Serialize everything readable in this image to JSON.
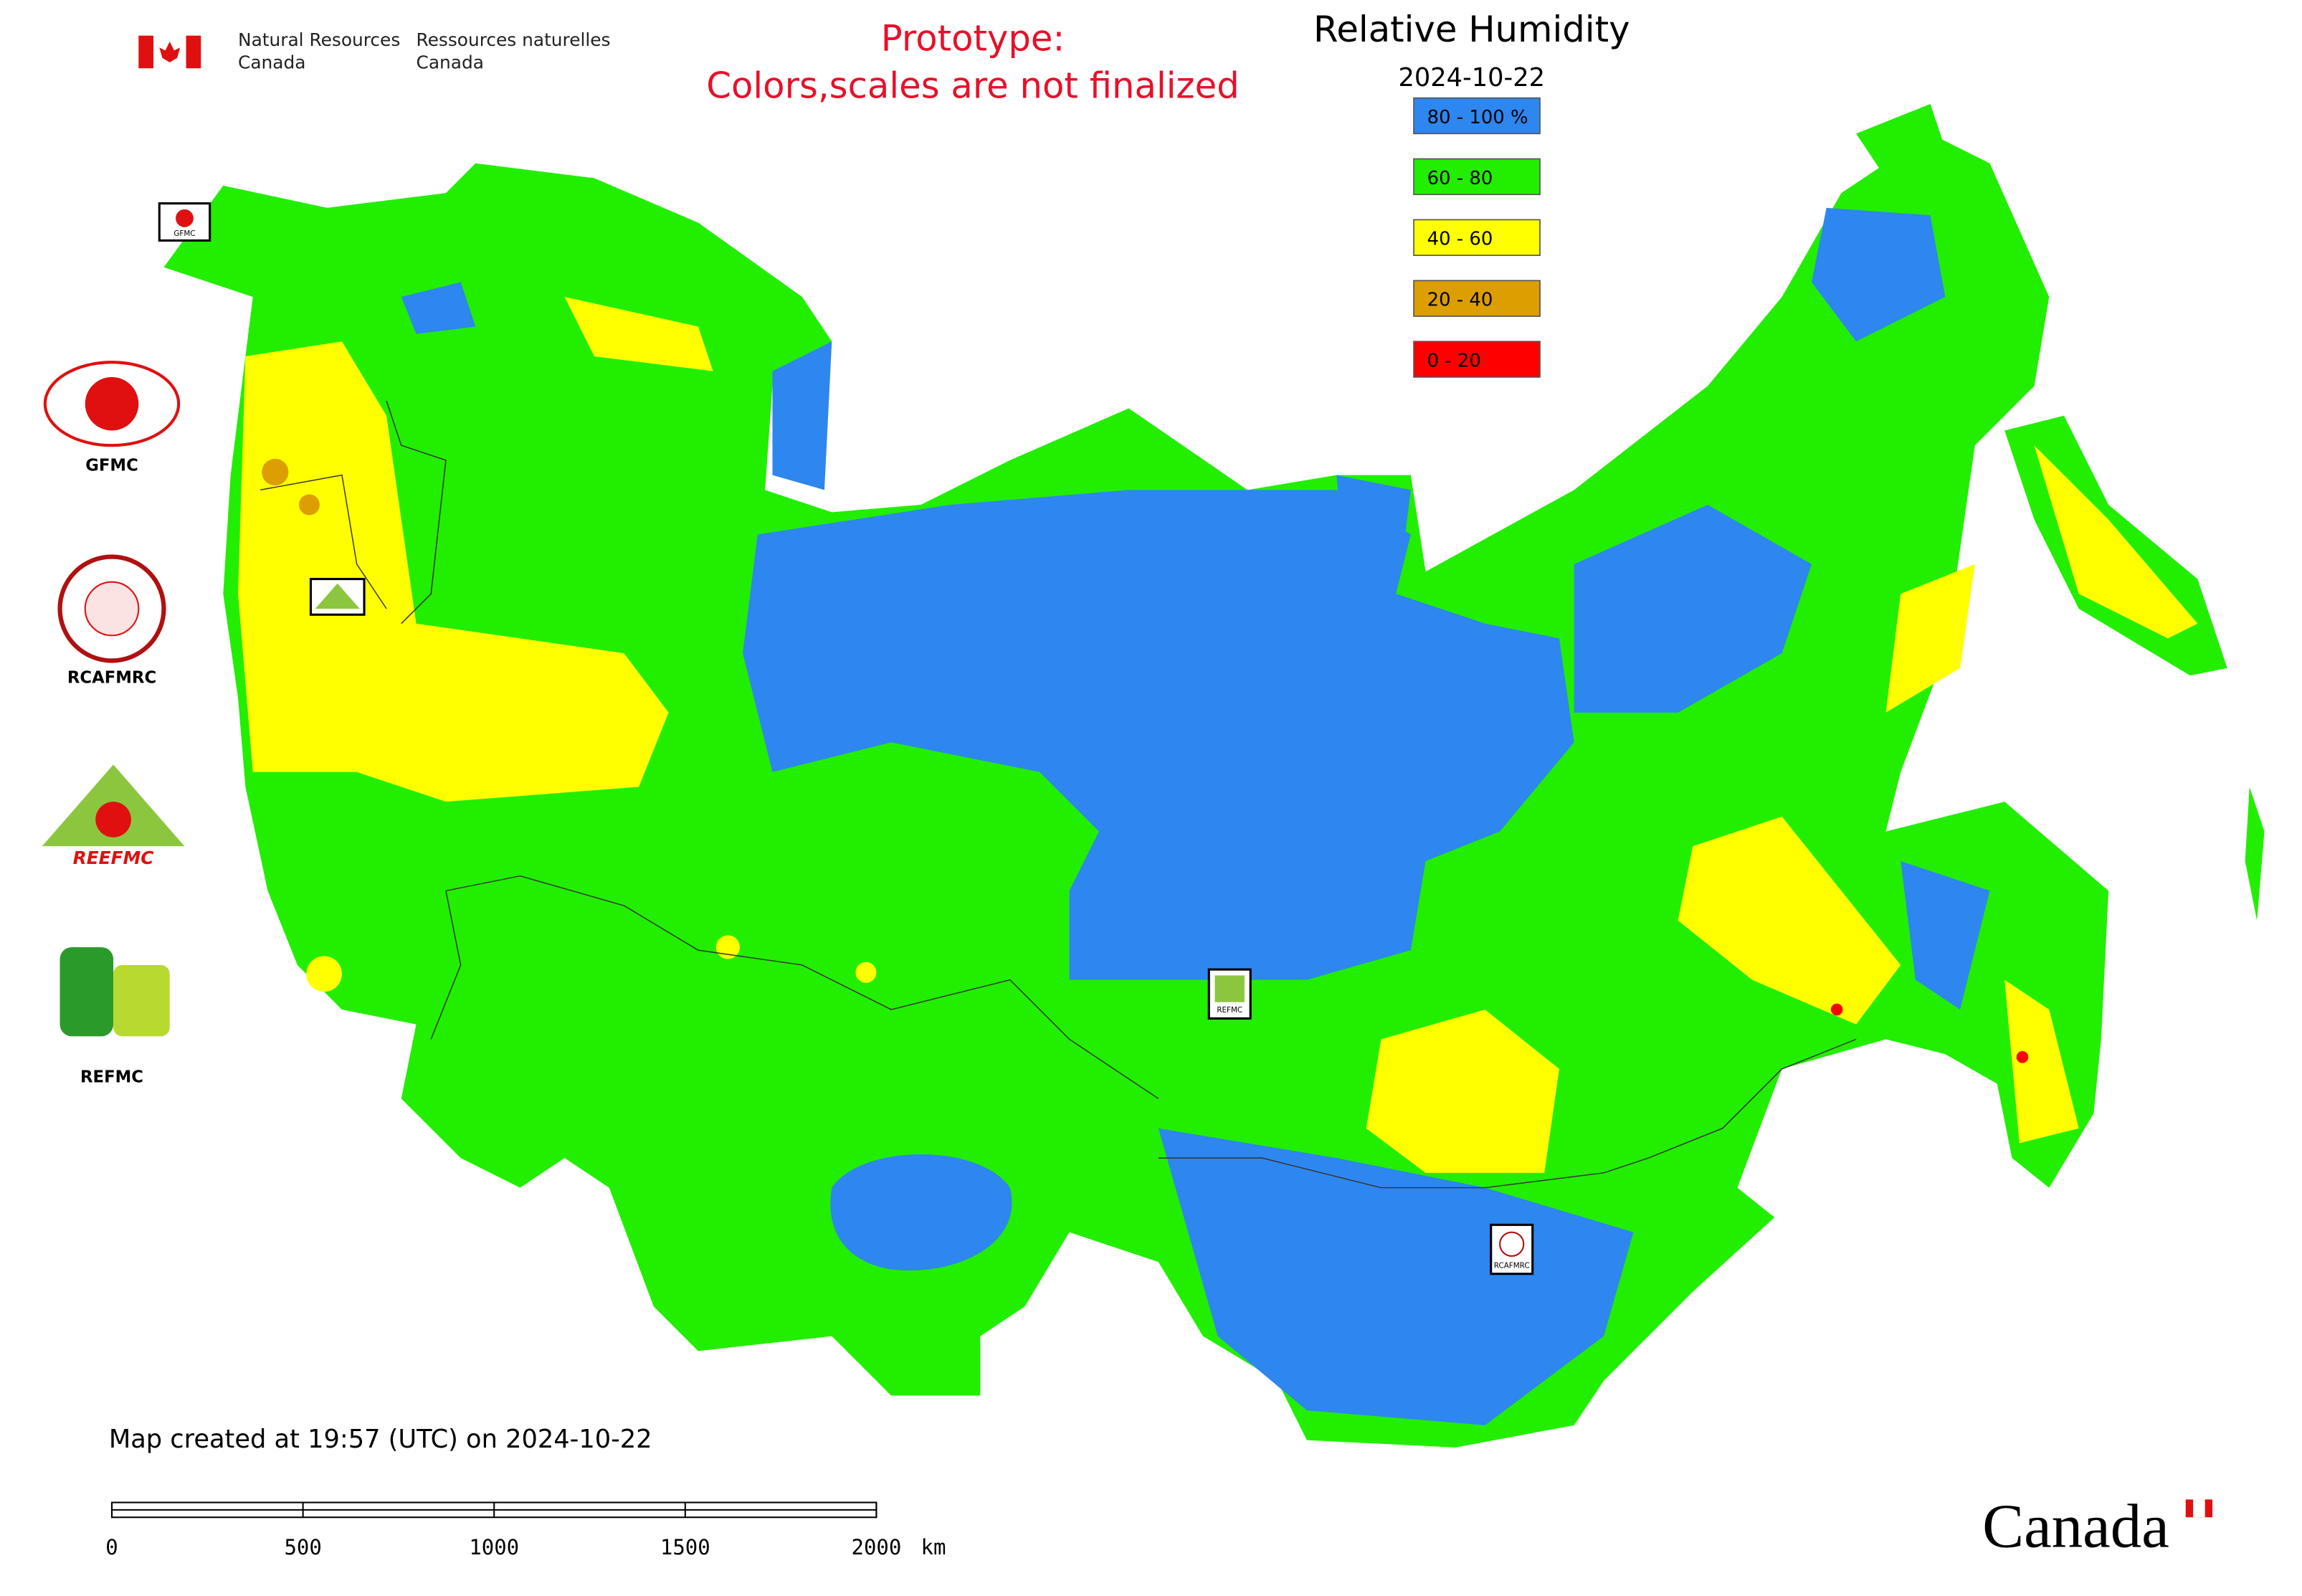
{
  "header": {
    "agency_en": [
      "Natural Resources",
      "Canada"
    ],
    "agency_fr": [
      "Ressources naturelles",
      "Canada"
    ]
  },
  "notice": [
    "Prototype:",
    "Colors,scales are not finalized"
  ],
  "title": "Relative Humidity",
  "date": "2024-10-22",
  "legend": [
    {
      "label": "80 - 100 %",
      "color": "#2e86ef"
    },
    {
      "label": "60 - 80",
      "color": "#22ee00"
    },
    {
      "label": "40 - 60",
      "color": "#ffff00"
    },
    {
      "label": "20 - 40",
      "color": "#dc9e00"
    },
    {
      "label": "0 - 20",
      "color": "#ff0000"
    }
  ],
  "logos": [
    "GFMC",
    "RCAFMRC",
    "REEFMC",
    "REFMC"
  ],
  "map_markers": [
    "GFMC",
    "REFMC",
    "RCAFMRC"
  ],
  "footer": "Map created at 19:57 (UTC) on 2024-10-22",
  "scale_bar": {
    "ticks": [
      0,
      500,
      1000,
      1500,
      2000
    ],
    "unit": "km"
  },
  "wordmark": "Canada"
}
